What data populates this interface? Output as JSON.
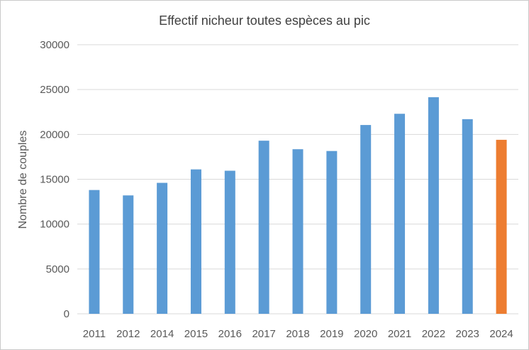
{
  "chart_data": {
    "type": "bar",
    "title": "Effectif nicheur toutes espèces au pic",
    "xlabel": "",
    "ylabel": "Nombre de couples",
    "categories": [
      "2011",
      "2012",
      "2014",
      "2015",
      "2016",
      "2017",
      "2018",
      "2019",
      "2020",
      "2021",
      "2022",
      "2023",
      "2024"
    ],
    "values": [
      13800,
      13200,
      14600,
      16100,
      15950,
      19300,
      18350,
      18150,
      21050,
      22300,
      24150,
      21700,
      19400
    ],
    "ylim": [
      0,
      30000
    ],
    "yticks": [
      "0",
      "5000",
      "10000",
      "15000",
      "20000",
      "25000",
      "30000"
    ],
    "grid": true,
    "legend": "none",
    "colors": {
      "default_bar": "#5b9bd5",
      "highlight_bar": "#ed7d31",
      "gridline": "#d9d9d9"
    },
    "highlight_category": "2024"
  }
}
